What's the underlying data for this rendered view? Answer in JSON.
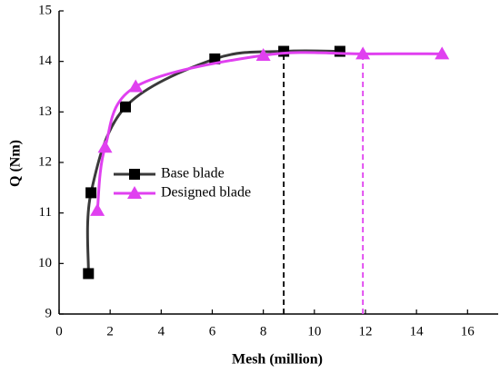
{
  "chart_data": {
    "type": "line",
    "x_label": "Mesh (million)",
    "y_label": "Q (Nm)",
    "xlim": [
      0,
      17.2
    ],
    "ylim": [
      9,
      15
    ],
    "xticks": [
      0,
      2,
      4,
      6,
      8,
      10,
      12,
      14,
      16
    ],
    "yticks": [
      9,
      10,
      11,
      12,
      13,
      14,
      15
    ],
    "legend": "center-left",
    "series": [
      {
        "name": "Base blade",
        "color": "#3a3a3a",
        "marker_color": "#000000",
        "marker": "square",
        "x": [
          1.15,
          1.25,
          2.6,
          6.1,
          8.8,
          11
        ],
        "values": [
          9.8,
          11.4,
          13.1,
          14.05,
          14.2,
          14.2
        ]
      },
      {
        "name": "Designed blade",
        "color": "#e040f0",
        "marker_color": "#e040f0",
        "marker": "triangle",
        "x": [
          1.5,
          1.8,
          3,
          8,
          11.9,
          15
        ],
        "values": [
          11.05,
          12.3,
          13.5,
          14.12,
          14.15,
          14.15
        ]
      }
    ],
    "vlines": [
      {
        "x": 8.8,
        "top": 14.2,
        "color": "#000000"
      },
      {
        "x": 11.9,
        "top": 14.15,
        "color": "#e040f0"
      }
    ]
  }
}
